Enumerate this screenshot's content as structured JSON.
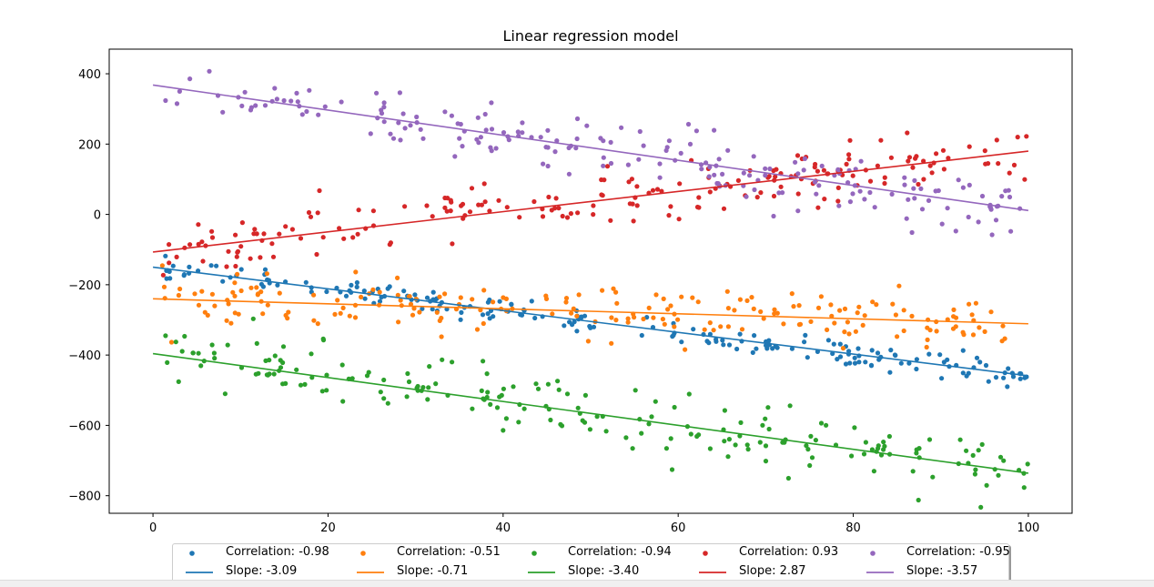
{
  "chart_data": {
    "type": "scatter",
    "title": "Linear regression model",
    "xlabel": "",
    "ylabel": "",
    "xlim": [
      -5,
      105
    ],
    "ylim": [
      -850,
      470
    ],
    "xticks": [
      0,
      20,
      40,
      60,
      80,
      100
    ],
    "yticks": [
      400,
      200,
      0,
      -200,
      -400,
      -600,
      -800
    ],
    "tick_labels_x": [
      "0",
      "20",
      "40",
      "60",
      "80",
      "100"
    ],
    "tick_labels_y": [
      "400",
      "200",
      "0",
      "−200",
      "−400",
      "−600",
      "−800"
    ],
    "grid": false,
    "legend_position": "bottom",
    "series": [
      {
        "color": "#1f77b4",
        "scatter_label": "Correlation: -0.98",
        "line_label": "Slope: -3.09",
        "intercept": -150,
        "slope": -3.09,
        "noise": 17
      },
      {
        "color": "#ff7f0e",
        "scatter_label": "Correlation: -0.51",
        "line_label": "Slope: -0.71",
        "intercept": -240,
        "slope": -0.71,
        "noise": 35
      },
      {
        "color": "#2ca02c",
        "scatter_label": "Correlation: -0.94",
        "line_label": "Slope: -3.40",
        "intercept": -396,
        "slope": -3.4,
        "noise": 45
      },
      {
        "color": "#d62728",
        "scatter_label": "Correlation: 0.93",
        "line_label": "Slope: 2.87",
        "intercept": -107,
        "slope": 2.87,
        "noise": 38
      },
      {
        "color": "#9467bd",
        "scatter_label": "Correlation: -0.95",
        "line_label": "Slope: -3.57",
        "intercept": 368,
        "slope": -3.57,
        "noise": 42
      }
    ],
    "x_range": [
      1,
      100
    ],
    "points_per_series": 200
  }
}
